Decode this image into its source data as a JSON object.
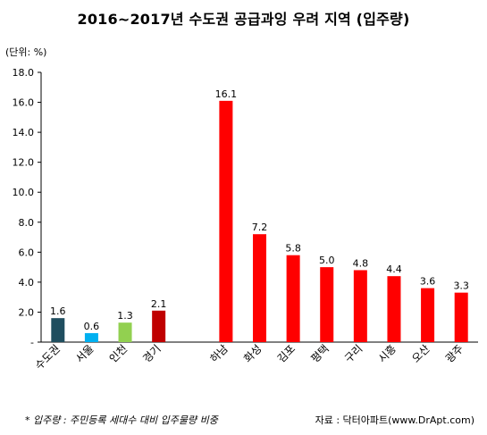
{
  "chart_data": {
    "type": "bar",
    "title": "2016~2017년 수도권 공급과잉 우려 지역 (입주량)",
    "unit_label": "(단위: %)",
    "ylim": [
      0,
      18
    ],
    "yticks": [
      "-",
      "2.0",
      "4.0",
      "6.0",
      "8.0",
      "10.0",
      "12.0",
      "14.0",
      "16.0",
      "18.0"
    ],
    "grid": false,
    "categories": [
      "수도권",
      "서울",
      "인천",
      "경기",
      "",
      "하남",
      "화성",
      "김포",
      "평택",
      "구리",
      "시흥",
      "오산",
      "광주"
    ],
    "values": [
      1.6,
      0.6,
      1.3,
      2.1,
      null,
      16.1,
      7.2,
      5.8,
      5.0,
      4.8,
      4.4,
      3.6,
      3.3
    ],
    "value_labels": [
      "1.6",
      "0.6",
      "1.3",
      "2.1",
      "",
      "16.1",
      "7.2",
      "5.8",
      "5.0",
      "4.8",
      "4.4",
      "3.6",
      "3.3"
    ],
    "colors": [
      "#1f4e5f",
      "#00b0f0",
      "#92d050",
      "#c00000",
      "",
      "#ff0000",
      "#ff0000",
      "#ff0000",
      "#ff0000",
      "#ff0000",
      "#ff0000",
      "#ff0000",
      "#ff0000"
    ]
  },
  "footnote": "* 입주량 : 주민등록 세대수 대비 입주물량 비중",
  "source": "자료 : 닥터아파트(www.DrApt.com)"
}
